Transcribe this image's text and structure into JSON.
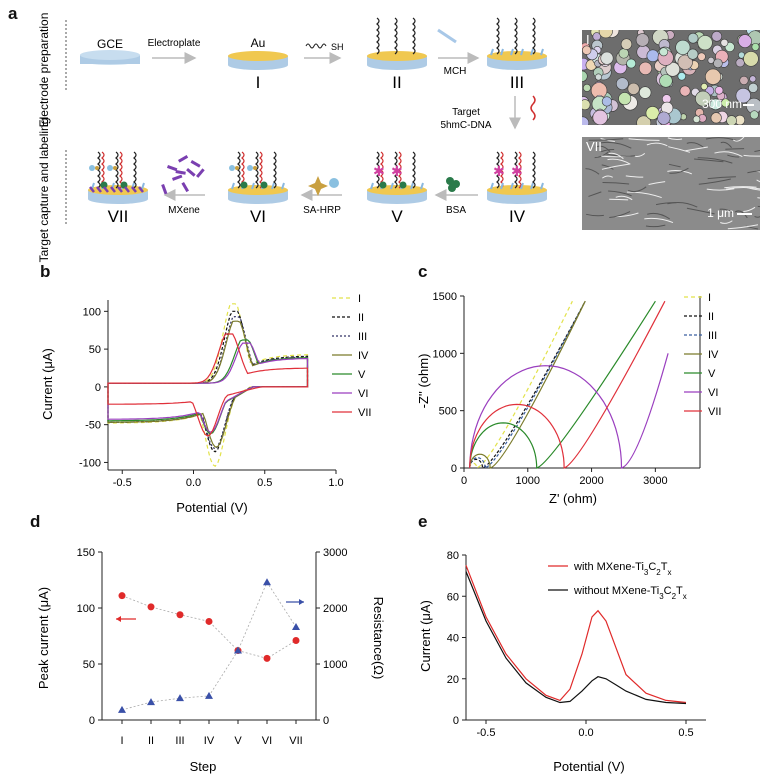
{
  "panels": {
    "a": "a",
    "b": "b",
    "c": "c",
    "d": "d",
    "e": "e"
  },
  "schematic": {
    "row1_label": "Electrode preparation",
    "row2_label": "Target capture and labeling",
    "gce": "GCE",
    "au": "Au",
    "electroplate": "Electroplate",
    "sh": "SH",
    "mch": "MCH",
    "target": "Target",
    "target2": "5hmC-DNA",
    "bsa": "BSA",
    "saHrp": "SA-HRP",
    "mxene": "MXene",
    "stages": [
      "I",
      "II",
      "III",
      "IV",
      "V",
      "VI",
      "VII"
    ],
    "sem1": {
      "tag": "I",
      "scale": "300 nm"
    },
    "sem2": {
      "tag": "VII",
      "scale": "1 μm"
    }
  },
  "chart_data": [
    {
      "id": "b",
      "type": "line",
      "xlabel": "Potential (V)",
      "ylabel": "Current (μA)",
      "xlim": [
        -0.6,
        1.0
      ],
      "ylim": [
        -110,
        115
      ],
      "xticks": [
        -0.5,
        0.0,
        0.5,
        1.0
      ],
      "yticks": [
        -100,
        -50,
        0,
        50,
        100
      ],
      "legend": "right",
      "series": [
        {
          "name": "I",
          "color": "#e2e24a",
          "dash": "4,3",
          "ipa": 110,
          "ipc": -105,
          "epa": 0.28,
          "epc": 0.15,
          "baseHi": 38,
          "baseLo": -45
        },
        {
          "name": "II",
          "color": "#111111",
          "dash": "3,2",
          "ipa": 100,
          "ipc": -86,
          "epa": 0.29,
          "epc": 0.15,
          "baseHi": 36,
          "baseLo": -44
        },
        {
          "name": "III",
          "color": "#333366",
          "dash": "2,2",
          "ipa": 93,
          "ipc": -82,
          "epa": 0.3,
          "epc": 0.15,
          "baseHi": 35,
          "baseLo": -44
        },
        {
          "name": "IV",
          "color": "#7a7a2a",
          "dash": "",
          "ipa": 87,
          "ipc": -80,
          "epa": 0.3,
          "epc": 0.16,
          "baseHi": 34,
          "baseLo": -44
        },
        {
          "name": "V",
          "color": "#2a8a2a",
          "dash": "",
          "ipa": 62,
          "ipc": -62,
          "epa": 0.36,
          "epc": 0.12,
          "baseHi": 34,
          "baseLo": -42
        },
        {
          "name": "VI",
          "color": "#9a3fbf",
          "dash": "",
          "ipa": 58,
          "ipc": -60,
          "epa": 0.37,
          "epc": 0.12,
          "baseHi": 33,
          "baseLo": -40
        },
        {
          "name": "VII",
          "color": "#e0303a",
          "dash": "",
          "ipa": 70,
          "ipc": -65,
          "epa": 0.25,
          "epc": 0.1,
          "baseHi": 20,
          "baseLo": -20
        }
      ]
    },
    {
      "id": "c",
      "type": "line",
      "xlabel": "Z' (ohm)",
      "ylabel": "-Z'' (ohm)",
      "xlim": [
        0,
        3700
      ],
      "ylim": [
        0,
        1500
      ],
      "xticks": [
        0,
        1000,
        2000,
        3000
      ],
      "yticks": [
        0,
        500,
        1000,
        1500
      ],
      "legend": "right",
      "series": [
        {
          "name": "I",
          "color": "#e2e24a",
          "dash": "4,3",
          "rct": 110,
          "xmax": 1700
        },
        {
          "name": "II",
          "color": "#111111",
          "dash": "3,2",
          "rct": 200,
          "xmax": 1900
        },
        {
          "name": "III",
          "color": "#3a5fa0",
          "dash": "3,2",
          "rct": 240,
          "xmax": 1900
        },
        {
          "name": "IV",
          "color": "#7a7a2a",
          "dash": "",
          "rct": 320,
          "xmax": 1900
        },
        {
          "name": "V",
          "color": "#2a8a2a",
          "dash": "",
          "rct": 1050,
          "xmax": 3000
        },
        {
          "name": "VI",
          "color": "#9a3fbf",
          "dash": "",
          "rct": 2380,
          "xmax": 3200
        },
        {
          "name": "VII",
          "color": "#e0303a",
          "dash": "",
          "rct": 1480,
          "xmax": 3150
        }
      ]
    },
    {
      "id": "d",
      "type": "scatter",
      "xlabel": "Step",
      "ylabel": "Peak current (μA)",
      "y2label": "Resistance(Ω)",
      "categories": [
        "I",
        "II",
        "III",
        "IV",
        "V",
        "VI",
        "VII"
      ],
      "ylim": [
        0,
        150
      ],
      "y2lim": [
        0,
        3000
      ],
      "yticks": [
        0,
        50,
        100,
        150
      ],
      "y2ticks": [
        0,
        1000,
        2000,
        3000
      ],
      "series": [
        {
          "name": "Peak current",
          "axis": "left",
          "color": "#e02a2a",
          "marker": "circle",
          "values": [
            111,
            101,
            94,
            88,
            62,
            55,
            71
          ]
        },
        {
          "name": "Resistance",
          "axis": "right",
          "color": "#3a50a8",
          "marker": "triangle",
          "values": [
            180,
            320,
            390,
            430,
            1240,
            2460,
            1660
          ]
        }
      ]
    },
    {
      "id": "e",
      "type": "line",
      "xlabel": "Potential (V)",
      "ylabel": "Current (μA)",
      "xlim": [
        -0.6,
        0.6
      ],
      "ylim": [
        0,
        80
      ],
      "xticks": [
        -0.5,
        0.0,
        0.5
      ],
      "yticks": [
        0,
        20,
        40,
        60,
        80
      ],
      "legend": "top-right",
      "series": [
        {
          "name": "with MXene-Ti3C2Tx",
          "color": "#e02a2a",
          "peak": 53,
          "points": [
            [
              -0.6,
              75
            ],
            [
              -0.5,
              50
            ],
            [
              -0.4,
              32
            ],
            [
              -0.3,
              20
            ],
            [
              -0.2,
              12
            ],
            [
              -0.13,
              9.5
            ],
            [
              -0.08,
              15
            ],
            [
              -0.02,
              32
            ],
            [
              0.03,
              50
            ],
            [
              0.06,
              53
            ],
            [
              0.1,
              48
            ],
            [
              0.15,
              35
            ],
            [
              0.2,
              22
            ],
            [
              0.3,
              13
            ],
            [
              0.4,
              9.5
            ],
            [
              0.5,
              8.5
            ]
          ]
        },
        {
          "name": "without MXene-Ti3C2Tx",
          "color": "#111111",
          "peak": 21,
          "points": [
            [
              -0.6,
              72
            ],
            [
              -0.5,
              48
            ],
            [
              -0.4,
              30
            ],
            [
              -0.3,
              18
            ],
            [
              -0.2,
              11
            ],
            [
              -0.13,
              8.5
            ],
            [
              -0.08,
              9
            ],
            [
              -0.02,
              14
            ],
            [
              0.03,
              19
            ],
            [
              0.06,
              21
            ],
            [
              0.1,
              20
            ],
            [
              0.15,
              17
            ],
            [
              0.2,
              14
            ],
            [
              0.3,
              10
            ],
            [
              0.4,
              8.5
            ],
            [
              0.5,
              8
            ]
          ]
        }
      ]
    }
  ]
}
